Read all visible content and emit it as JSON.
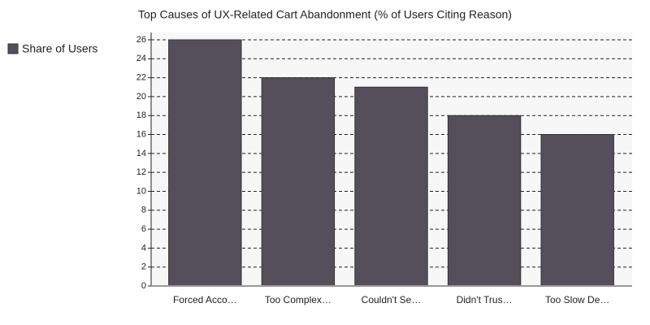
{
  "chart_data": {
    "type": "bar",
    "title": "Top Causes of UX-Related Cart Abandonment (% of Users Citing Reason)",
    "categories": [
      "Forced Acco…",
      "Too Complex…",
      "Couldn't Se…",
      "Didn't Trus…",
      "Too Slow De…"
    ],
    "series": [
      {
        "name": "Share of Users",
        "color": "#544f5a",
        "values": [
          26,
          22,
          21,
          18,
          16
        ]
      }
    ],
    "ylim": [
      0,
      26
    ],
    "yticks": [
      0,
      2,
      4,
      6,
      8,
      10,
      12,
      14,
      16,
      18,
      20,
      22,
      24,
      26
    ],
    "grid": true,
    "legend": "left"
  }
}
